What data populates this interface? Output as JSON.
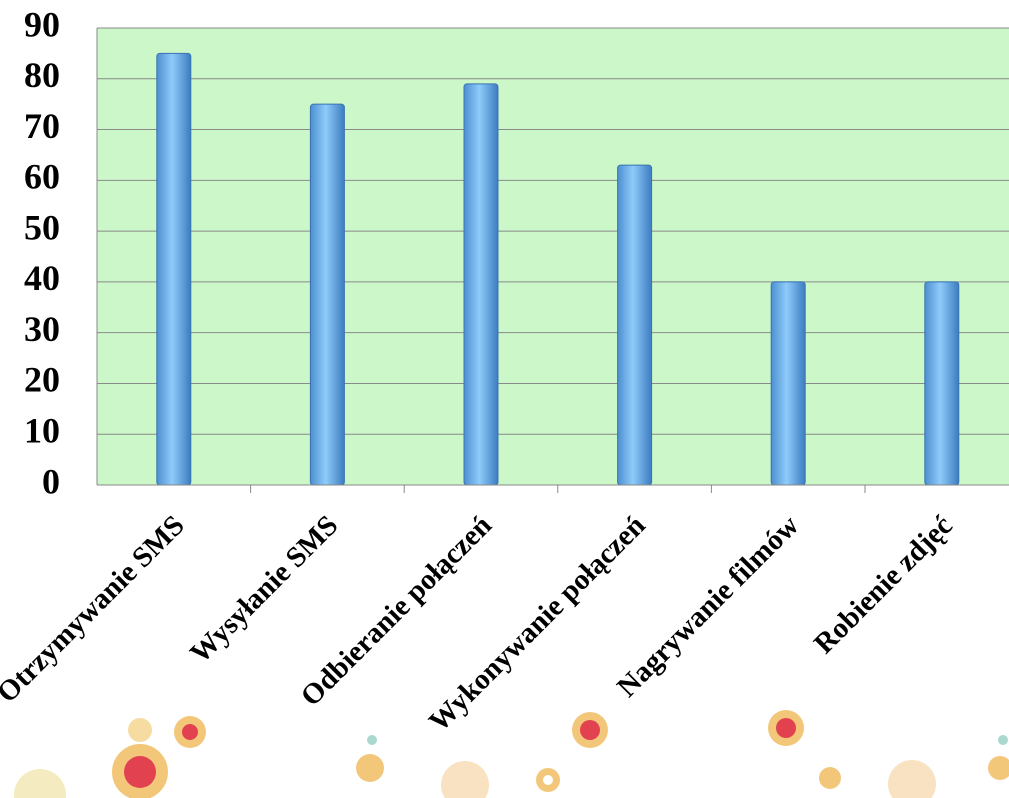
{
  "chart_data": {
    "type": "bar",
    "categories": [
      "Otrzymywanie SMS",
      "Wysyłanie SMS",
      "Odbieranie połączeń",
      "Wykonywanie połączeń",
      "Nagrywanie filmów",
      "Robienie zdjęć"
    ],
    "values": [
      85,
      75,
      79,
      63,
      40,
      40
    ],
    "color": "#6fb0ea",
    "ylim": [
      0,
      90
    ],
    "yticks": [
      0,
      10,
      20,
      30,
      40,
      50,
      60,
      70,
      80,
      90
    ],
    "grid": true
  }
}
